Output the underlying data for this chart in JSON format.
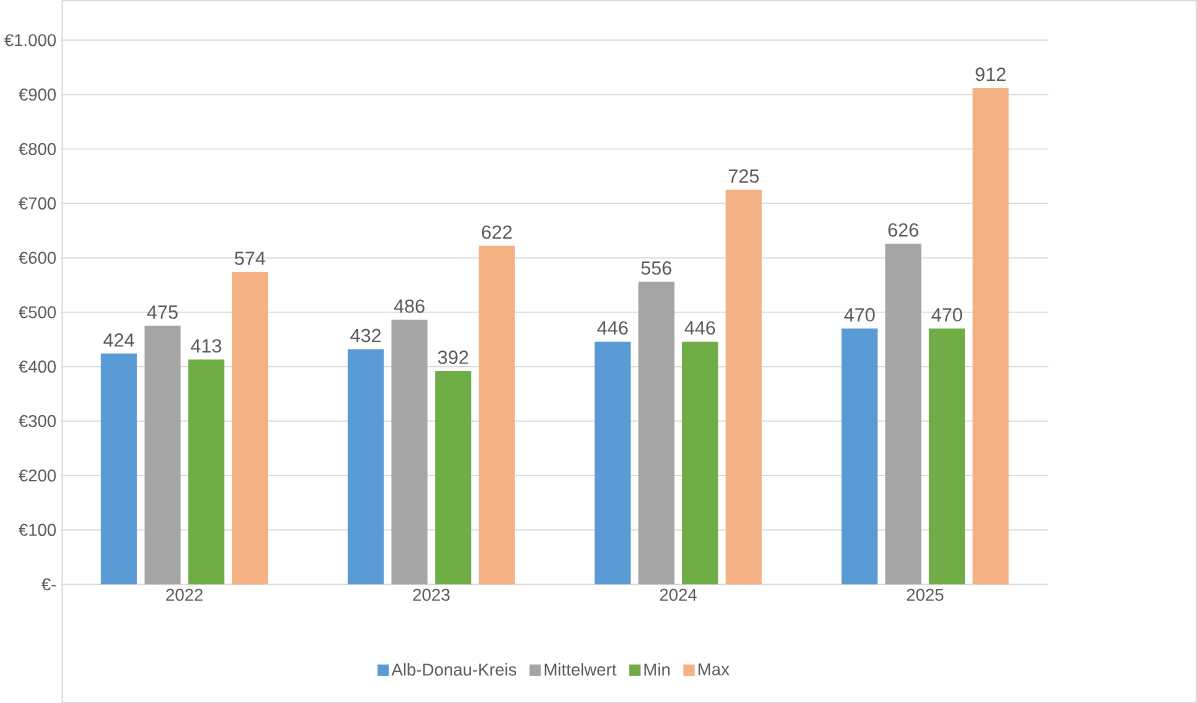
{
  "chart_data": {
    "type": "bar",
    "categories": [
      "2022",
      "2023",
      "2024",
      "2025"
    ],
    "series": [
      {
        "name": "Alb-Donau-Kreis",
        "color": "#5b9bd5",
        "values": [
          424,
          432,
          446,
          470
        ]
      },
      {
        "name": "Mittelwert",
        "color": "#a5a5a5",
        "values": [
          475,
          486,
          556,
          626
        ]
      },
      {
        "name": "Min",
        "color": "#70ad47",
        "values": [
          413,
          392,
          446,
          470
        ]
      },
      {
        "name": "Max",
        "color": "#f4b183",
        "values": [
          574,
          622,
          725,
          912
        ]
      }
    ],
    "ylim": [
      0,
      1000
    ],
    "yticks": [
      {
        "value": 0,
        "label": "€-"
      },
      {
        "value": 100,
        "label": "€100"
      },
      {
        "value": 200,
        "label": "€200"
      },
      {
        "value": 300,
        "label": "€300"
      },
      {
        "value": 400,
        "label": "€400"
      },
      {
        "value": 500,
        "label": "€500"
      },
      {
        "value": 600,
        "label": "€600"
      },
      {
        "value": 700,
        "label": "€700"
      },
      {
        "value": 800,
        "label": "€800"
      },
      {
        "value": 900,
        "label": "€900"
      },
      {
        "value": 1000,
        "label": "€1.000"
      }
    ],
    "grid": "y",
    "legend": "bottom",
    "data_labels": true
  }
}
